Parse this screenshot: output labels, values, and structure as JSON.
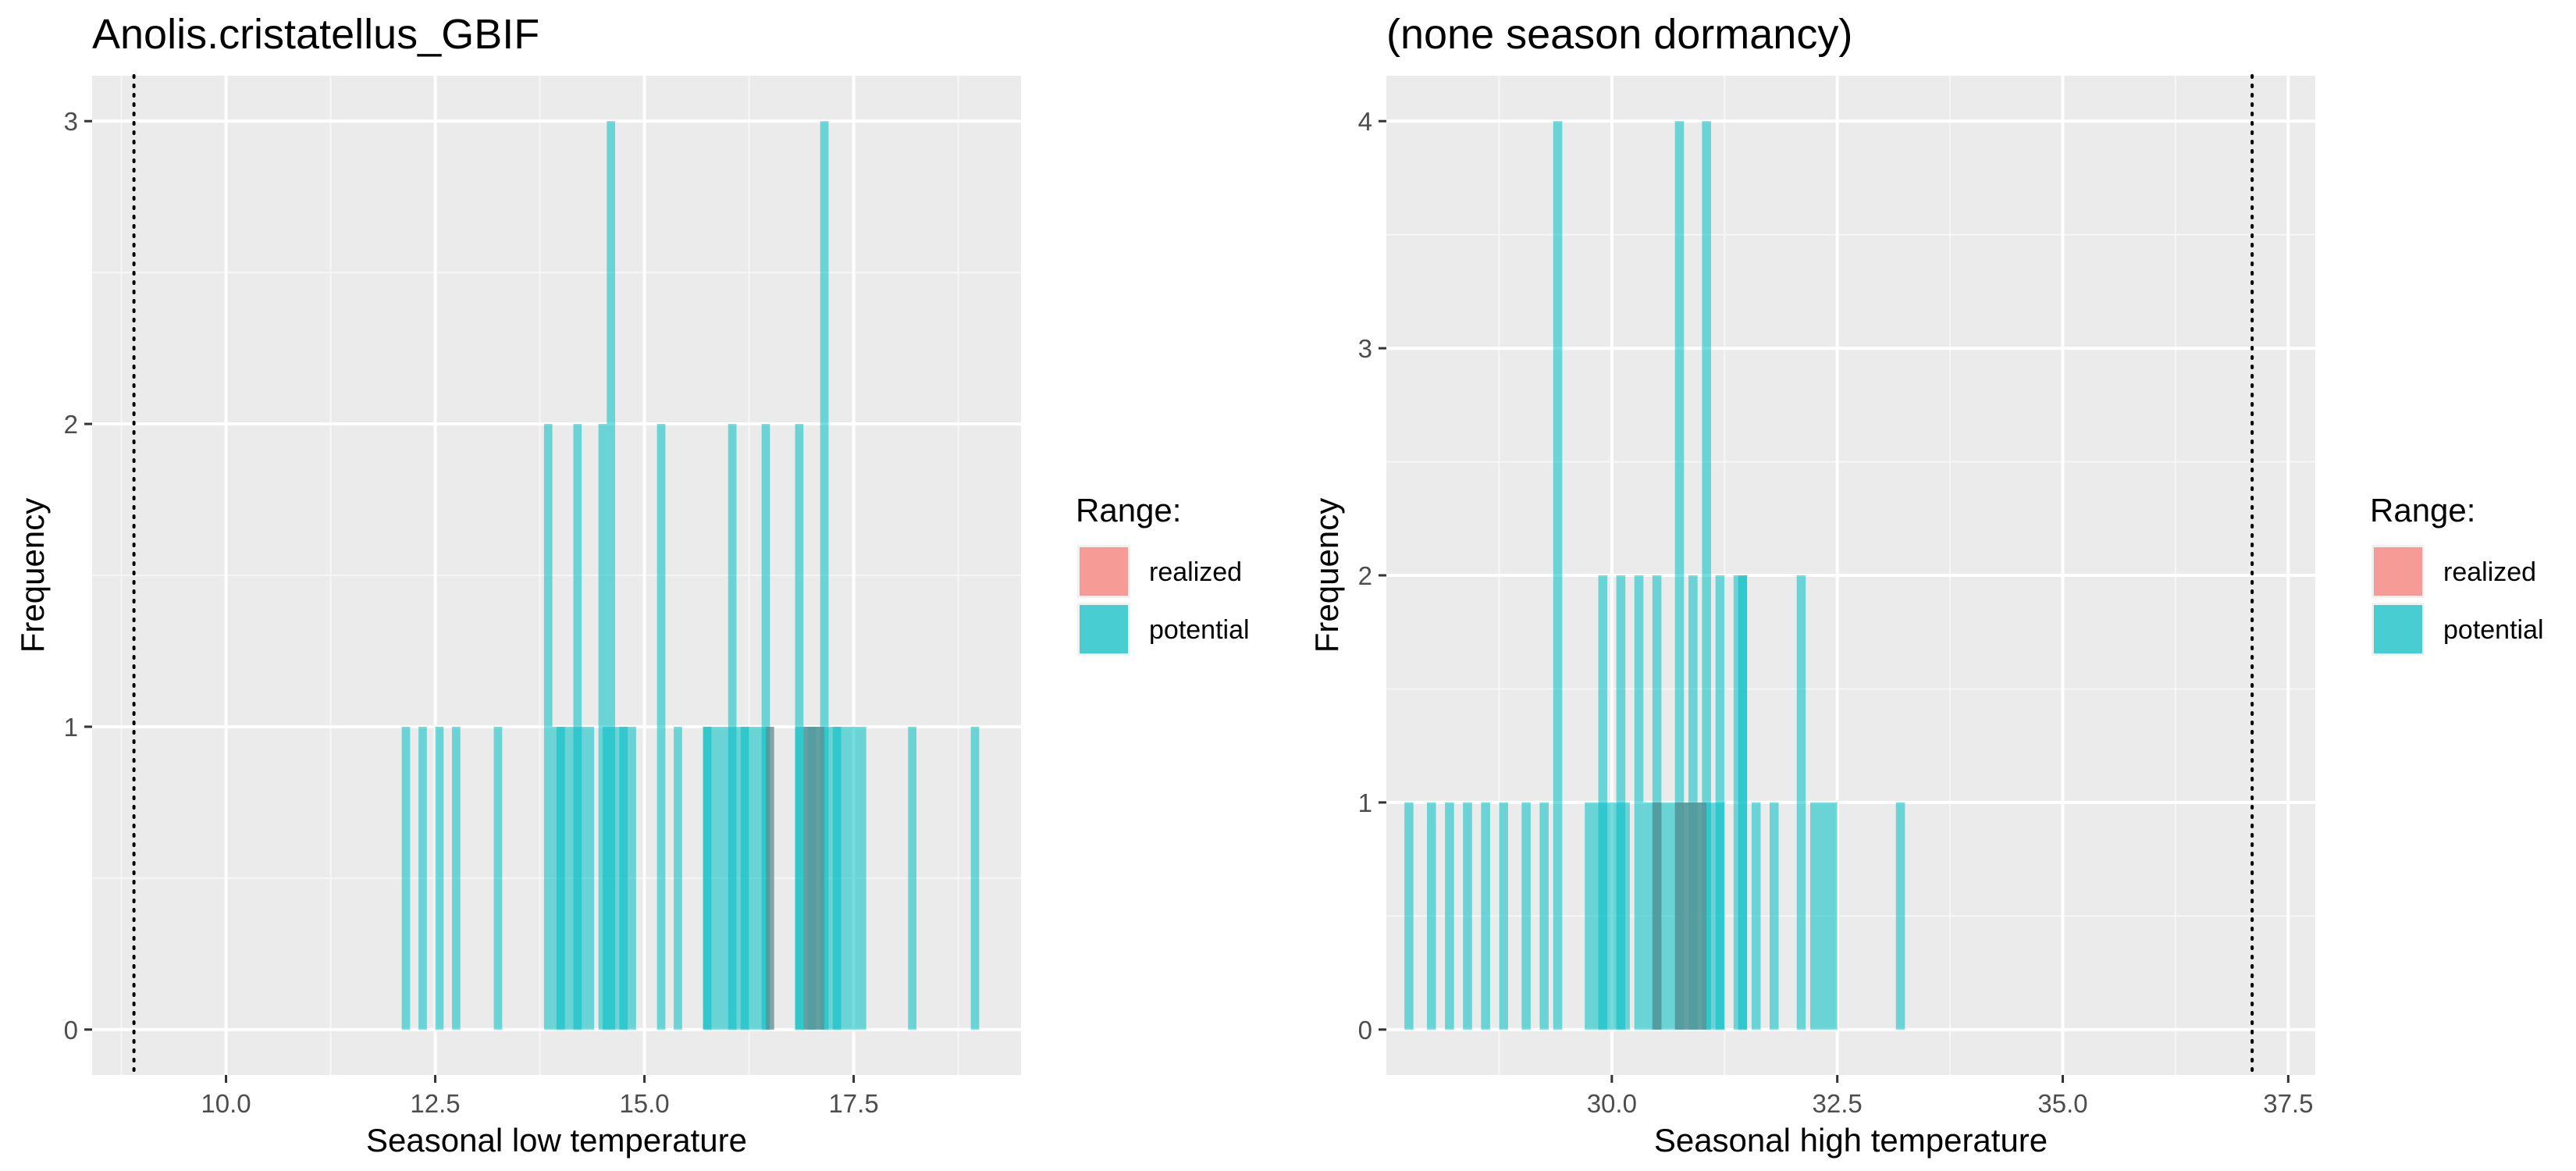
{
  "chart_data": [
    {
      "type": "histogram",
      "title": "Anolis.cristatellus_GBIF",
      "xlabel": "Seasonal low temperature",
      "ylabel": "Frequency",
      "xlim": [
        8.4,
        19.5
      ],
      "ylim": [
        -0.15,
        3.15
      ],
      "x_ticks": [
        "10.0",
        "12.5",
        "15.0",
        "17.5"
      ],
      "x_tick_values": [
        10.0,
        12.5,
        15.0,
        17.5
      ],
      "y_ticks": [
        "0",
        "1",
        "2",
        "3"
      ],
      "y_tick_values": [
        0,
        1,
        2,
        3
      ],
      "grid": true,
      "reference_line_x": 8.9,
      "series": [
        {
          "name": "realized",
          "color": "#F8766D",
          "bins": []
        },
        {
          "name": "potential",
          "color": "#00BFC4",
          "bins": [
            {
              "x": 12.15,
              "count": 1
            },
            {
              "x": 12.35,
              "count": 1
            },
            {
              "x": 12.55,
              "count": 1
            },
            {
              "x": 12.75,
              "count": 1
            },
            {
              "x": 13.25,
              "count": 1
            },
            {
              "x": 13.85,
              "count": 2
            },
            {
              "x": 14.0,
              "count": 1
            },
            {
              "x": 14.2,
              "count": 2
            },
            {
              "x": 14.35,
              "count": 1
            },
            {
              "x": 14.5,
              "count": 2
            },
            {
              "x": 14.6,
              "count": 3
            },
            {
              "x": 14.75,
              "count": 1
            },
            {
              "x": 15.2,
              "count": 2
            },
            {
              "x": 15.4,
              "count": 1
            },
            {
              "x": 15.75,
              "count": 1
            },
            {
              "x": 16.05,
              "count": 2
            },
            {
              "x": 16.2,
              "count": 1
            },
            {
              "x": 16.45,
              "count": 2
            },
            {
              "x": 16.85,
              "count": 2
            },
            {
              "x": 17.0,
              "count": 1
            },
            {
              "x": 17.15,
              "count": 3
            },
            {
              "x": 17.3,
              "count": 1
            },
            {
              "x": 18.2,
              "count": 1
            },
            {
              "x": 18.95,
              "count": 1
            }
          ],
          "fill_spans": [
            {
              "x0": 13.9,
              "x1": 14.3,
              "count": 1
            },
            {
              "x0": 14.5,
              "x1": 14.9,
              "count": 1
            },
            {
              "x0": 15.7,
              "x1": 16.5,
              "count": 1
            },
            {
              "x0": 16.8,
              "x1": 17.65,
              "count": 1
            }
          ]
        }
      ],
      "overlap_spans": [
        {
          "x0": 16.45,
          "x1": 16.55,
          "count": 1
        },
        {
          "x0": 16.9,
          "x1": 17.15,
          "count": 1
        }
      ],
      "legend": {
        "title": "Range:",
        "placement": "right",
        "entries": [
          "realized",
          "potential"
        ]
      }
    },
    {
      "type": "histogram",
      "title": "(none season dormancy)",
      "xlabel": "Seasonal high temperature",
      "ylabel": "Frequency",
      "xlim": [
        27.5,
        37.8
      ],
      "ylim": [
        -0.2,
        4.2
      ],
      "x_ticks": [
        "30.0",
        "32.5",
        "35.0",
        "37.5"
      ],
      "x_tick_values": [
        30.0,
        32.5,
        35.0,
        37.5
      ],
      "y_ticks": [
        "0",
        "1",
        "2",
        "3",
        "4"
      ],
      "y_tick_values": [
        0,
        1,
        2,
        3,
        4
      ],
      "grid": true,
      "reference_line_x": 37.1,
      "series": [
        {
          "name": "realized",
          "color": "#F8766D",
          "bins": []
        },
        {
          "name": "potential",
          "color": "#00BFC4",
          "bins": [
            {
              "x": 27.75,
              "count": 1
            },
            {
              "x": 28.0,
              "count": 1
            },
            {
              "x": 28.2,
              "count": 1
            },
            {
              "x": 28.4,
              "count": 1
            },
            {
              "x": 28.6,
              "count": 1
            },
            {
              "x": 28.8,
              "count": 1
            },
            {
              "x": 29.05,
              "count": 1
            },
            {
              "x": 29.25,
              "count": 1
            },
            {
              "x": 29.4,
              "count": 4
            },
            {
              "x": 29.9,
              "count": 2
            },
            {
              "x": 30.1,
              "count": 2
            },
            {
              "x": 30.3,
              "count": 2
            },
            {
              "x": 30.5,
              "count": 2
            },
            {
              "x": 30.75,
              "count": 4
            },
            {
              "x": 30.9,
              "count": 2
            },
            {
              "x": 31.05,
              "count": 4
            },
            {
              "x": 31.2,
              "count": 2
            },
            {
              "x": 31.45,
              "count": 2
            },
            {
              "x": 31.6,
              "count": 1
            },
            {
              "x": 31.8,
              "count": 1
            },
            {
              "x": 32.1,
              "count": 2
            },
            {
              "x": 33.2,
              "count": 1
            }
          ],
          "fill_spans": [
            {
              "x0": 29.7,
              "x1": 30.2,
              "count": 1
            },
            {
              "x0": 30.35,
              "x1": 31.25,
              "count": 1
            },
            {
              "x0": 31.35,
              "x1": 31.5,
              "count": 2
            },
            {
              "x0": 32.2,
              "x1": 32.5,
              "count": 1
            }
          ]
        }
      ],
      "overlap_spans": [
        {
          "x0": 30.45,
          "x1": 30.55,
          "count": 1
        },
        {
          "x0": 30.7,
          "x1": 31.05,
          "count": 1
        }
      ],
      "legend": {
        "title": "Range:",
        "placement": "right",
        "entries": [
          "realized",
          "potential"
        ]
      }
    }
  ]
}
